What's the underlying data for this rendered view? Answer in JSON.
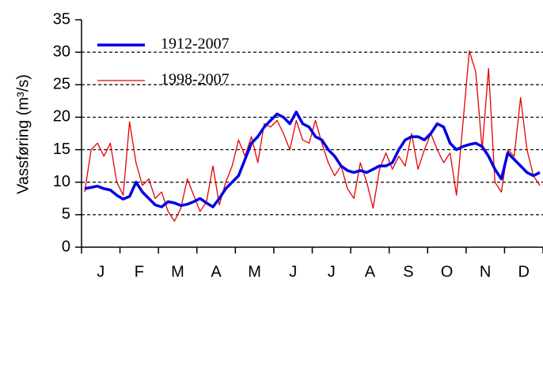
{
  "chart_data": {
    "type": "line",
    "y_label": "Vassføring (m³/s)",
    "categories": [
      null,
      null,
      null,
      "J",
      null,
      null,
      null,
      null,
      null,
      "F",
      null,
      null,
      null,
      null,
      null,
      "M",
      null,
      null,
      null,
      null,
      null,
      "A",
      null,
      null,
      null,
      null,
      null,
      "M",
      null,
      null,
      null,
      null,
      null,
      "J",
      null,
      null,
      null,
      null,
      null,
      "J",
      null,
      null,
      null,
      null,
      null,
      "A",
      null,
      null,
      null,
      null,
      null,
      "S",
      null,
      null,
      null,
      null,
      null,
      "O",
      null,
      null,
      null,
      null,
      null,
      "N",
      null,
      null,
      null,
      null,
      null,
      "D",
      null,
      null
    ],
    "series": [
      {
        "name": "1912-2007",
        "color": "#0000e6",
        "values": [
          9.0,
          9.2,
          9.4,
          9.0,
          8.8,
          8.0,
          7.4,
          7.8,
          10.0,
          8.5,
          7.5,
          6.5,
          6.2,
          7.0,
          6.8,
          6.4,
          6.6,
          7.0,
          7.5,
          6.8,
          6.2,
          7.5,
          9.0,
          10.0,
          11.0,
          13.5,
          16.0,
          17.0,
          18.5,
          19.5,
          20.5,
          20.0,
          19.0,
          20.8,
          19.0,
          18.5,
          17.0,
          16.5,
          15.0,
          14.0,
          12.5,
          11.8,
          11.5,
          11.8,
          11.5,
          12.0,
          12.5,
          12.5,
          13.0,
          15.0,
          16.5,
          17.0,
          17.0,
          16.5,
          17.5,
          19.0,
          18.5,
          16.0,
          15.0,
          15.5,
          15.8,
          16.0,
          15.5,
          14.0,
          12.0,
          10.5,
          14.5,
          13.5,
          12.5,
          11.5,
          11.0,
          11.5
        ]
      },
      {
        "name": "1998-2007",
        "color": "#e60000",
        "values": [
          8.5,
          15.0,
          16.0,
          14.0,
          16.0,
          10.0,
          8.0,
          19.3,
          13.0,
          9.5,
          10.5,
          7.5,
          8.5,
          5.5,
          4.0,
          6.0,
          10.5,
          8.0,
          5.5,
          7.0,
          12.5,
          6.5,
          10.0,
          12.5,
          16.5,
          14.0,
          17.0,
          13.0,
          19.0,
          18.5,
          19.5,
          17.5,
          15.0,
          19.5,
          16.5,
          16.0,
          19.5,
          16.0,
          13.0,
          11.0,
          12.5,
          9.0,
          7.5,
          13.0,
          10.0,
          6.0,
          12.0,
          14.5,
          12.0,
          14.0,
          12.5,
          17.5,
          12.0,
          15.0,
          17.5,
          15.0,
          13.0,
          14.5,
          8.0,
          19.0,
          30.2,
          27.0,
          15.0,
          27.5,
          10.0,
          8.5,
          15.0,
          14.0,
          23.0,
          15.0,
          11.0,
          9.5
        ]
      }
    ],
    "ylim": [
      0,
      35
    ],
    "yticks": [
      0,
      5,
      10,
      15,
      20,
      25,
      30,
      35
    ],
    "grid": true,
    "legend": "upper-left"
  }
}
